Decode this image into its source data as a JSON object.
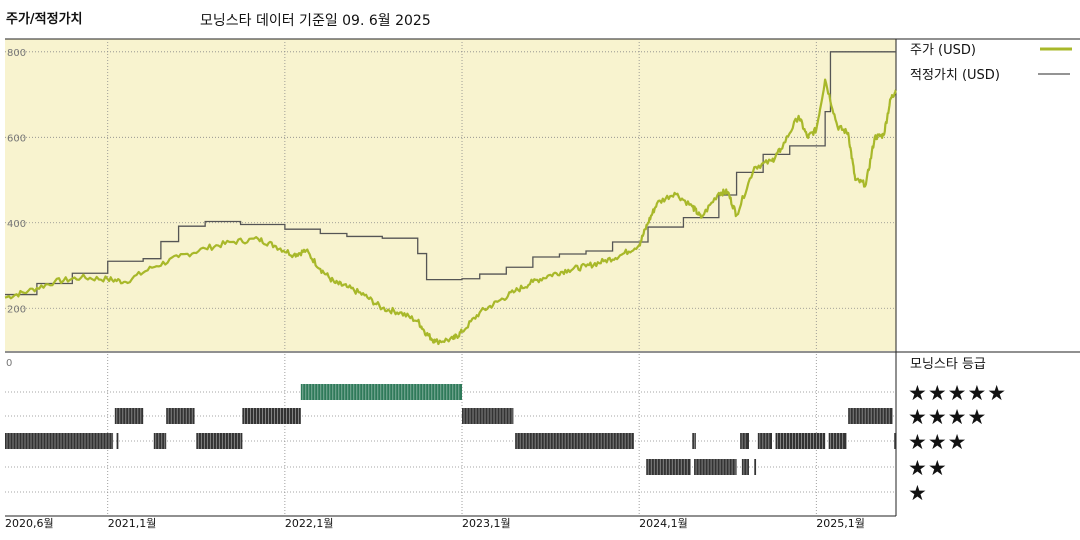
{
  "header": {
    "left_title": "주가/적정가치",
    "subtitle": "모닝스타 데이터 기준일 09. 6월 2025"
  },
  "colors": {
    "price": "#a8b82a",
    "fair_value": "#555555",
    "plot_bg": "#f8f3cf",
    "rating_bar": "#333333",
    "rating_bar_top": "#2f7a5a"
  },
  "legend": {
    "price_label": "주가 (USD)",
    "fair_value_label": "적정가치 (USD)",
    "rating_title": "모닝스타 등급"
  },
  "chart_data": {
    "type": "line",
    "x_ticks": [
      "2020,6월",
      "2021,1월",
      "2022,1월",
      "2023,1월",
      "2024,1월",
      "2025,1월"
    ],
    "x_tick_dates": [
      2020.42,
      2021.0,
      2022.0,
      2023.0,
      2024.0,
      2025.0
    ],
    "x_range": [
      2020.42,
      2025.45
    ],
    "ylim": [
      100,
      830
    ],
    "y_ticks": [
      "200",
      "400",
      "600",
      "800"
    ],
    "y_tick_values": [
      200,
      400,
      600,
      800
    ],
    "rating_axis_label": "0",
    "series": [
      {
        "name": "주가 (USD)",
        "style": "line",
        "points": [
          [
            2020.42,
            225
          ],
          [
            2020.55,
            240
          ],
          [
            2020.7,
            262
          ],
          [
            2020.85,
            272
          ],
          [
            2021.0,
            268
          ],
          [
            2021.1,
            262
          ],
          [
            2021.25,
            295
          ],
          [
            2021.4,
            320
          ],
          [
            2021.55,
            340
          ],
          [
            2021.7,
            355
          ],
          [
            2021.85,
            362
          ],
          [
            2021.95,
            345
          ],
          [
            2022.05,
            325
          ],
          [
            2022.12,
            335
          ],
          [
            2022.2,
            292
          ],
          [
            2022.28,
            260
          ],
          [
            2022.35,
            250
          ],
          [
            2022.45,
            230
          ],
          [
            2022.55,
            200
          ],
          [
            2022.65,
            190
          ],
          [
            2022.75,
            170
          ],
          [
            2022.8,
            140
          ],
          [
            2022.85,
            122
          ],
          [
            2022.95,
            128
          ],
          [
            2023.0,
            145
          ],
          [
            2023.1,
            190
          ],
          [
            2023.2,
            215
          ],
          [
            2023.3,
            240
          ],
          [
            2023.4,
            262
          ],
          [
            2023.5,
            278
          ],
          [
            2023.6,
            290
          ],
          [
            2023.7,
            298
          ],
          [
            2023.8,
            310
          ],
          [
            2023.9,
            325
          ],
          [
            2024.0,
            348
          ],
          [
            2024.05,
            400
          ],
          [
            2024.1,
            445
          ],
          [
            2024.2,
            470
          ],
          [
            2024.3,
            438
          ],
          [
            2024.35,
            412
          ],
          [
            2024.45,
            470
          ],
          [
            2024.5,
            472
          ],
          [
            2024.55,
            418
          ],
          [
            2024.65,
            530
          ],
          [
            2024.75,
            545
          ],
          [
            2024.8,
            572
          ],
          [
            2024.9,
            650
          ],
          [
            2024.95,
            600
          ],
          [
            2025.0,
            618
          ],
          [
            2025.05,
            735
          ],
          [
            2025.12,
            625
          ],
          [
            2025.18,
            610
          ],
          [
            2025.22,
            500
          ],
          [
            2025.28,
            490
          ],
          [
            2025.33,
            600
          ],
          [
            2025.38,
            605
          ],
          [
            2025.42,
            690
          ],
          [
            2025.45,
            710
          ]
        ]
      },
      {
        "name": "적정가치 (USD)",
        "style": "step",
        "points": [
          [
            2020.42,
            232
          ],
          [
            2020.6,
            258
          ],
          [
            2020.8,
            282
          ],
          [
            2021.0,
            310
          ],
          [
            2021.2,
            316
          ],
          [
            2021.3,
            356
          ],
          [
            2021.4,
            392
          ],
          [
            2021.55,
            403
          ],
          [
            2021.75,
            396
          ],
          [
            2022.0,
            385
          ],
          [
            2022.2,
            375
          ],
          [
            2022.35,
            368
          ],
          [
            2022.55,
            364
          ],
          [
            2022.75,
            328
          ],
          [
            2022.8,
            267
          ],
          [
            2023.0,
            269
          ],
          [
            2023.1,
            280
          ],
          [
            2023.25,
            296
          ],
          [
            2023.4,
            320
          ],
          [
            2023.55,
            327
          ],
          [
            2023.7,
            334
          ],
          [
            2023.85,
            355
          ],
          [
            2024.05,
            390
          ],
          [
            2024.25,
            412
          ],
          [
            2024.45,
            465
          ],
          [
            2024.55,
            518
          ],
          [
            2024.7,
            560
          ],
          [
            2024.85,
            580
          ],
          [
            2025.05,
            660
          ],
          [
            2025.08,
            800
          ],
          [
            2025.45,
            800
          ]
        ]
      }
    ],
    "star_ratings": {
      "row_labels": [
        "★★★★★",
        "★★★★",
        "★★★",
        "★★",
        "★"
      ],
      "levels": [
        5,
        4,
        3,
        2,
        1
      ],
      "periods": [
        {
          "stars": 3,
          "start": 2020.42,
          "end": 2021.03
        },
        {
          "stars": 3,
          "start": 2021.05,
          "end": 2021.06
        },
        {
          "stars": 4,
          "start": 2021.04,
          "end": 2021.2
        },
        {
          "stars": 3,
          "start": 2021.26,
          "end": 2021.33
        },
        {
          "stars": 4,
          "start": 2021.33,
          "end": 2021.49
        },
        {
          "stars": 3,
          "start": 2021.5,
          "end": 2021.76
        },
        {
          "stars": 4,
          "start": 2021.76,
          "end": 2022.09
        },
        {
          "stars": 5,
          "start": 2022.09,
          "end": 2023.0
        },
        {
          "stars": 4,
          "start": 2023.0,
          "end": 2023.29
        },
        {
          "stars": 3,
          "start": 2023.3,
          "end": 2023.97
        },
        {
          "stars": 2,
          "start": 2024.04,
          "end": 2024.29
        },
        {
          "stars": 2,
          "start": 2024.31,
          "end": 2024.55
        },
        {
          "stars": 3,
          "start": 2024.3,
          "end": 2024.32
        },
        {
          "stars": 2,
          "start": 2024.58,
          "end": 2024.62
        },
        {
          "stars": 2,
          "start": 2024.65,
          "end": 2024.66
        },
        {
          "stars": 3,
          "start": 2024.57,
          "end": 2024.62
        },
        {
          "stars": 3,
          "start": 2024.67,
          "end": 2024.75
        },
        {
          "stars": 3,
          "start": 2024.77,
          "end": 2025.05
        },
        {
          "stars": 3,
          "start": 2025.07,
          "end": 2025.17
        },
        {
          "stars": 4,
          "start": 2025.18,
          "end": 2025.43
        },
        {
          "stars": 3,
          "start": 2025.44,
          "end": 2025.45
        }
      ]
    }
  }
}
